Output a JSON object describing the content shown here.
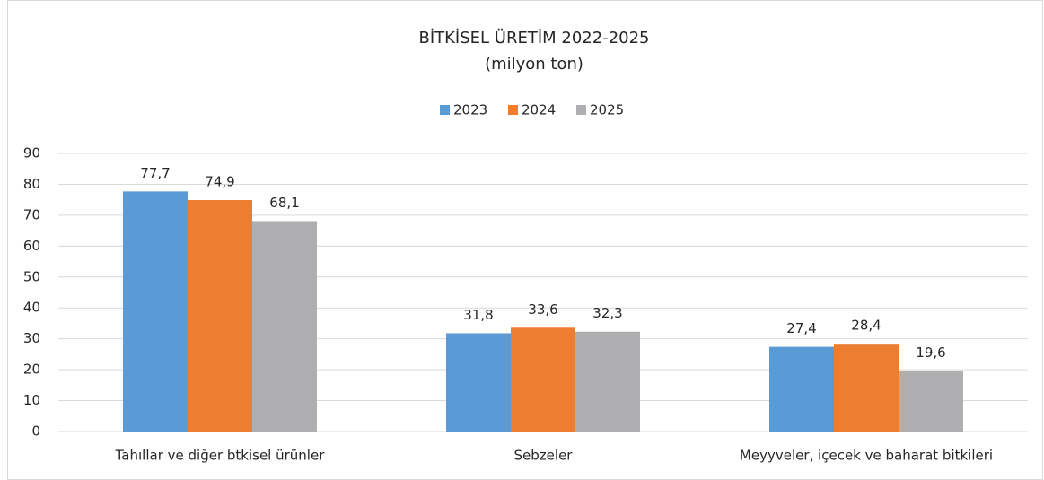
{
  "chart_data": {
    "type": "bar",
    "title": "BİTKİSEL ÜRETİM 2022-2025",
    "subtitle": "(milyon ton)",
    "categories": [
      "Tahıllar ve diğer btkisel ürünler",
      "Sebzeler",
      "Meyyveler, içecek ve baharat bitkileri"
    ],
    "series": [
      {
        "name": "2023",
        "color": "#5b9bd5",
        "values": [
          77.7,
          31.8,
          27.4
        ],
        "value_labels": [
          "77,7",
          "31,8",
          "27,4"
        ]
      },
      {
        "name": "2024",
        "color": "#ed7d31",
        "values": [
          74.9,
          33.6,
          28.4
        ],
        "value_labels": [
          "74,9",
          "33,6",
          "28,4"
        ]
      },
      {
        "name": "2025",
        "color": "#afafb2",
        "values": [
          68.1,
          32.3,
          19.6
        ],
        "value_labels": [
          "68,1",
          "32,3",
          "19,6"
        ]
      }
    ],
    "ylim": [
      0,
      90
    ],
    "yticks": [
      0,
      10,
      20,
      30,
      40,
      50,
      60,
      70,
      80,
      90
    ],
    "grid": true,
    "legend": "top"
  }
}
